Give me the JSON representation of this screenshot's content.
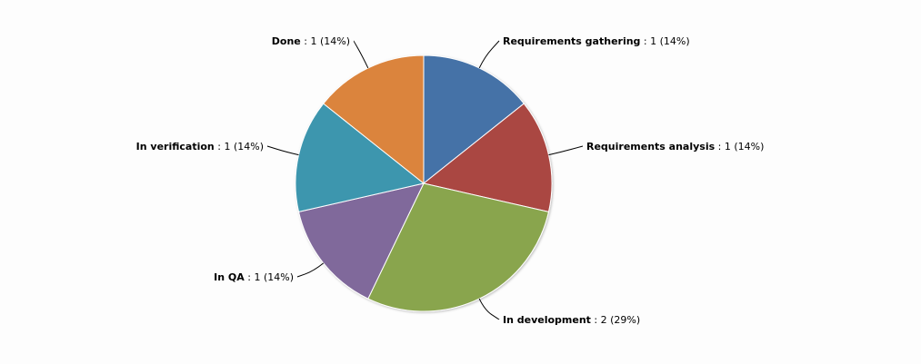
{
  "chart_data": {
    "type": "pie",
    "title": "",
    "start_angle_deg": 0,
    "direction": "clockwise",
    "slices": [
      {
        "name": "Requirements gathering",
        "value": 1,
        "percent_label": "(14%)",
        "color": "#4572a7"
      },
      {
        "name": "Requirements analysis",
        "value": 1,
        "percent_label": "(14%)",
        "color": "#aa4643"
      },
      {
        "name": "In development",
        "value": 2,
        "percent_label": "(29%)",
        "color": "#89a54e"
      },
      {
        "name": "In QA",
        "value": 1,
        "percent_label": "(14%)",
        "color": "#80699b"
      },
      {
        "name": "In verification",
        "value": 1,
        "percent_label": "(14%)",
        "color": "#3d96ae"
      },
      {
        "name": "Done",
        "value": 1,
        "percent_label": "(14%)",
        "color": "#db843d"
      }
    ]
  }
}
